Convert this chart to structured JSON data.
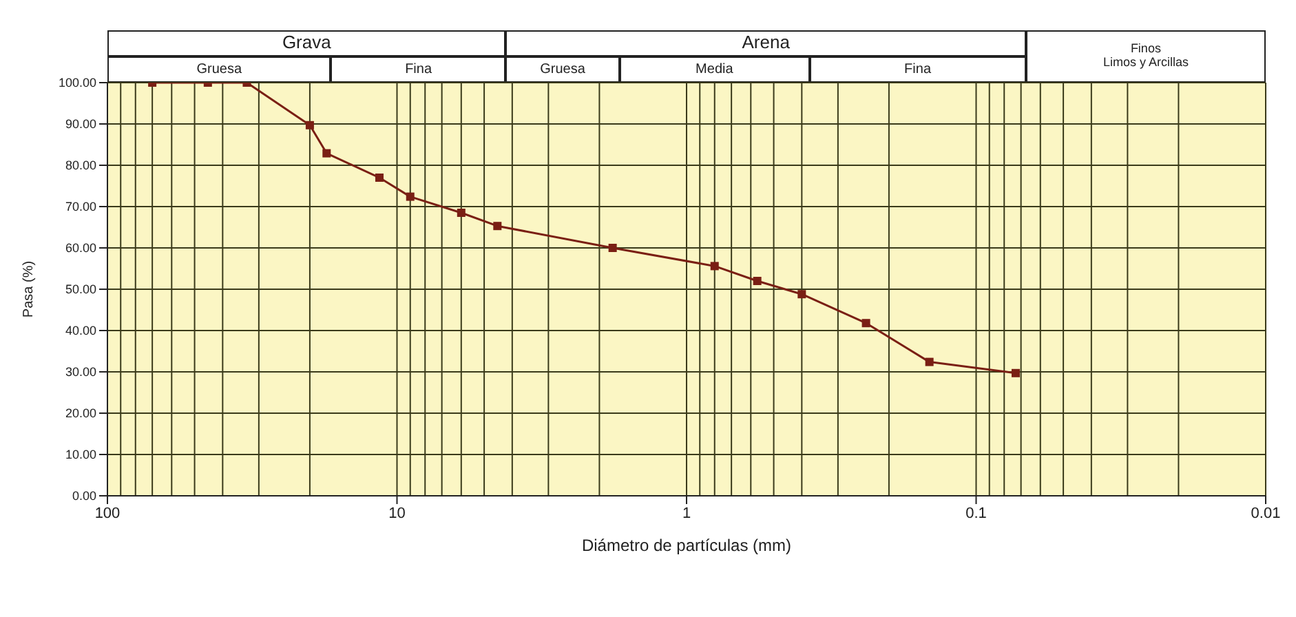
{
  "chart_data": {
    "type": "line",
    "xlabel": "Diámetro de partículas (mm)",
    "ylabel": "Pasa (%)",
    "annotations": [
      "Grava",
      "Arena",
      "Finos",
      "Limos y Arcillas",
      "Gruesa",
      "Fina",
      "Gruesa",
      "Media",
      "Fina"
    ],
    "x": [
      70,
      45,
      33,
      20,
      17.5,
      11.5,
      9,
      6,
      4.5,
      1.8,
      0.8,
      0.57,
      0.4,
      0.24,
      0.145,
      0.073
    ],
    "series": [
      {
        "color": "#7a1f14",
        "values": [
          100,
          100,
          100,
          89.7,
          82.9,
          77,
          72.4,
          68.5,
          65.3,
          60,
          55.6,
          52,
          48.8,
          41.8,
          32.4,
          29.7
        ]
      }
    ],
    "log": "x",
    "xlim": [
      100,
      0.01
    ],
    "xticks": [
      100,
      10,
      1,
      0.1,
      0.01
    ],
    "ylim": [
      0,
      100
    ],
    "yticks": [
      {
        "value": 0,
        "label": "0.00"
      },
      {
        "value": 10,
        "label": "10.00"
      },
      {
        "value": 20,
        "label": "20.00"
      },
      {
        "value": 30,
        "label": "30.00"
      },
      {
        "value": 40,
        "label": "40.00"
      },
      {
        "value": 50,
        "label": "50.00"
      },
      {
        "value": 60,
        "label": "60.00"
      },
      {
        "value": 70,
        "label": "70.00"
      },
      {
        "value": 80,
        "label": "80.00"
      },
      {
        "value": 90,
        "label": "90.00"
      },
      {
        "value": 100,
        "label": "100.00"
      }
    ],
    "grid": true,
    "marker": "square",
    "line_style": "solid"
  }
}
